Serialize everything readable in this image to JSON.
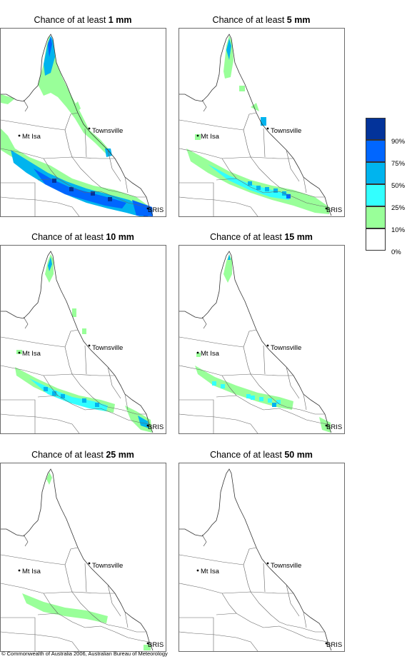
{
  "panels": [
    {
      "title_prefix": "Chance of at least ",
      "amount": "1 mm"
    },
    {
      "title_prefix": "Chance of at least ",
      "amount": "5 mm"
    },
    {
      "title_prefix": "Chance of at least ",
      "amount": "10 mm"
    },
    {
      "title_prefix": "Chance of at least ",
      "amount": "15 mm"
    },
    {
      "title_prefix": "Chance of at least ",
      "amount": "25 mm"
    },
    {
      "title_prefix": "Chance of at least ",
      "amount": "50 mm"
    }
  ],
  "cities": {
    "townsville": "Townsville",
    "mt_isa": "Mt Isa",
    "brisbane": "BRIS"
  },
  "legend": {
    "colors": [
      "#03339a",
      "#0066ff",
      "#00b4ee",
      "#33ffff",
      "#99ff99",
      "#ffffff"
    ],
    "labels": [
      "90%",
      "75%",
      "50%",
      "25%",
      "10%",
      "0%"
    ]
  },
  "copyright": "© Commonwealth of Australia 2006, Australian Bureau of Meteorology"
}
